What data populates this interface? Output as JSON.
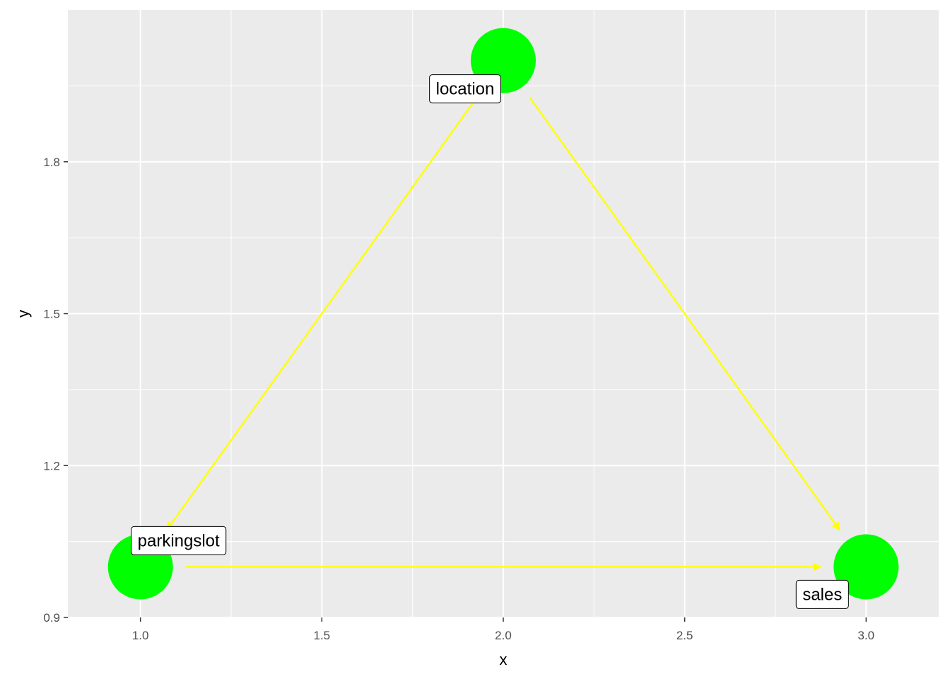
{
  "chart_data": {
    "type": "scatter",
    "title": "",
    "xlabel": "x",
    "ylabel": "y",
    "xlim": [
      0.8,
      3.2
    ],
    "ylim": [
      0.9,
      2.1
    ],
    "x_ticks": [
      1.0,
      1.5,
      2.0,
      2.5,
      3.0
    ],
    "x_tick_labels": [
      "1.0",
      "1.5",
      "2.0",
      "2.5",
      "3.0"
    ],
    "y_ticks": [
      0.9,
      1.2,
      1.5,
      1.8
    ],
    "y_tick_labels": [
      "0.9",
      "1.2",
      "1.5",
      "1.8"
    ],
    "grid": true,
    "legend": "none",
    "colors": {
      "panel": "#ebebeb",
      "grid": "#ffffff",
      "node": "#00ff00",
      "edge": "#ffff00",
      "label_fill": "#ffffff",
      "label_border": "#000000"
    },
    "nodes": [
      {
        "name": "location",
        "x": 2.0,
        "y": 2.0
      },
      {
        "name": "parkingslot",
        "x": 1.0,
        "y": 1.0
      },
      {
        "name": "sales",
        "x": 3.0,
        "y": 1.0
      }
    ],
    "edges": [
      {
        "from": "location",
        "to": "parkingslot"
      },
      {
        "from": "location",
        "to": "sales"
      },
      {
        "from": "parkingslot",
        "to": "sales"
      }
    ]
  }
}
